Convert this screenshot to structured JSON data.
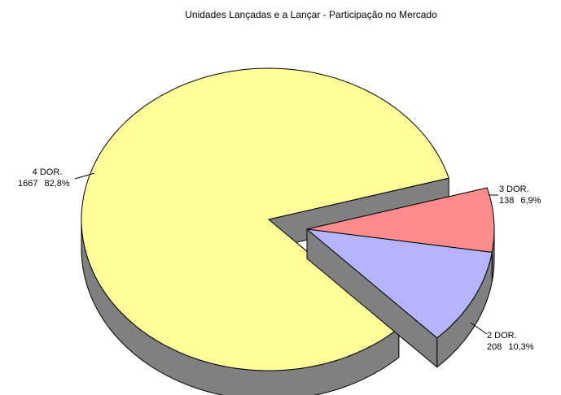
{
  "chart_data": {
    "type": "pie3d",
    "title": "Unidades Lançadas e a Lançar - Participação no Mercado",
    "categories": [
      "4 DOR.",
      "3 DOR.",
      "2 DOR."
    ],
    "values": [
      1667,
      138,
      208
    ],
    "percents": [
      82.8,
      6.9,
      10.3
    ],
    "percent_labels": [
      "82,8%",
      "6,9%",
      "10,3%"
    ],
    "colors": [
      "#ffff99",
      "#ff8c8c",
      "#b4b4ff"
    ],
    "exploded": [
      false,
      true,
      true
    ]
  }
}
